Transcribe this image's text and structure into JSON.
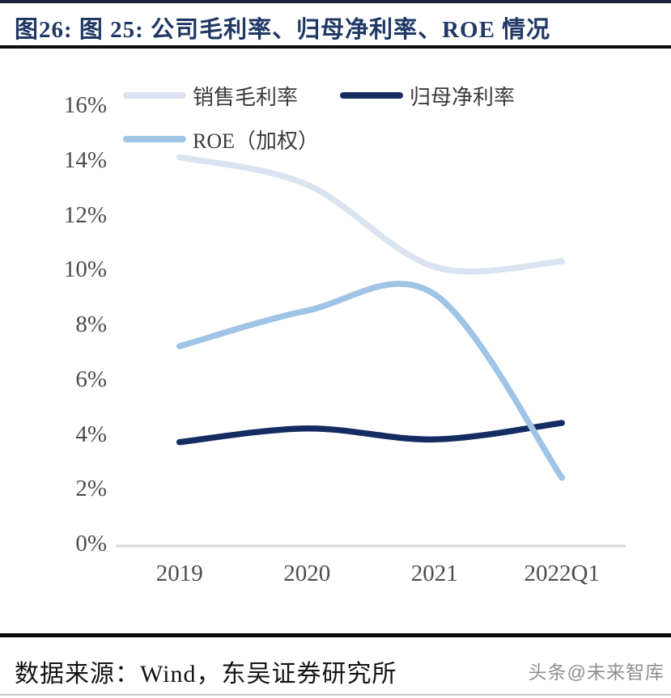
{
  "page": {
    "title": "图26:  图 25:  公司毛利率、归母净利率、ROE 情况"
  },
  "chart_data": {
    "type": "line",
    "title": "公司毛利率、归母净利率、ROE 情况",
    "categories": [
      "2019",
      "2020",
      "2021",
      "2022Q1"
    ],
    "series": [
      {
        "name": "销售毛利率",
        "color": "#dae3f0",
        "values": [
          14.1,
          13.1,
          10.1,
          10.3
        ]
      },
      {
        "name": "归母净利率",
        "color": "#152c63",
        "values": [
          3.7,
          4.2,
          3.8,
          4.4
        ]
      },
      {
        "name": "ROE（加权）",
        "color": "#a0c4e6",
        "values": [
          7.2,
          8.5,
          9.1,
          2.4
        ]
      }
    ],
    "unit": "%",
    "ylim": [
      0,
      16
    ],
    "ytick_step": 2,
    "ytick_labels": [
      "0%",
      "2%",
      "4%",
      "6%",
      "8%",
      "10%",
      "12%",
      "14%",
      "16%"
    ],
    "grid": false,
    "smooth": true,
    "legend_position": "top-left",
    "axis_line_color": "#d9d9d9"
  },
  "footer": {
    "source": "数据来源：Wind，东吴证券研究所",
    "watermark": "头条@未来智库"
  }
}
